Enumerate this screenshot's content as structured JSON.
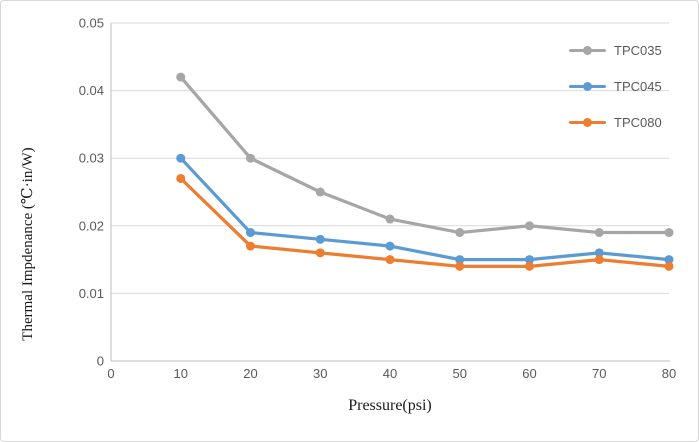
{
  "chart_data": {
    "type": "line",
    "title": "",
    "xlabel": "Pressure(psi)",
    "ylabel": "Thermal Impdenance (℃·in/W)",
    "xlim": [
      0,
      80
    ],
    "ylim": [
      0,
      0.05
    ],
    "x_ticks": [
      0,
      10,
      20,
      30,
      40,
      50,
      60,
      70,
      80
    ],
    "x_tick_labels": [
      "0",
      "10",
      "20",
      "30",
      "40",
      "50",
      "60",
      "70",
      "80"
    ],
    "y_ticks": [
      0,
      0.01,
      0.02,
      0.03,
      0.04,
      0.05
    ],
    "y_tick_labels": [
      "0",
      "0.01",
      "0.02",
      "0.03",
      "0.04",
      "0.05"
    ],
    "grid": "horizontal-only",
    "legend_position": "inside-top-right",
    "marker": "circle",
    "x": [
      10,
      20,
      30,
      40,
      50,
      60,
      70,
      80
    ],
    "series": [
      {
        "name": "TPC035",
        "color": "#a6a6a6",
        "values": [
          0.042,
          0.03,
          0.025,
          0.021,
          0.019,
          0.02,
          0.019,
          0.019
        ]
      },
      {
        "name": "TPC045",
        "color": "#5b9bd5",
        "values": [
          0.03,
          0.019,
          0.018,
          0.017,
          0.015,
          0.015,
          0.016,
          0.015
        ]
      },
      {
        "name": "TPC080",
        "color": "#ed7d31",
        "values": [
          0.027,
          0.017,
          0.016,
          0.015,
          0.014,
          0.014,
          0.015,
          0.014
        ]
      }
    ],
    "style_colors": {
      "gridline": "#d9d9d9",
      "axis_line": "#bfbfbf",
      "tick_text": "#595959",
      "legend_text": "#595959",
      "axis_title_text": "#1a1a1a",
      "background": "#ffffff",
      "frame_border": "#d7d7d7"
    }
  }
}
